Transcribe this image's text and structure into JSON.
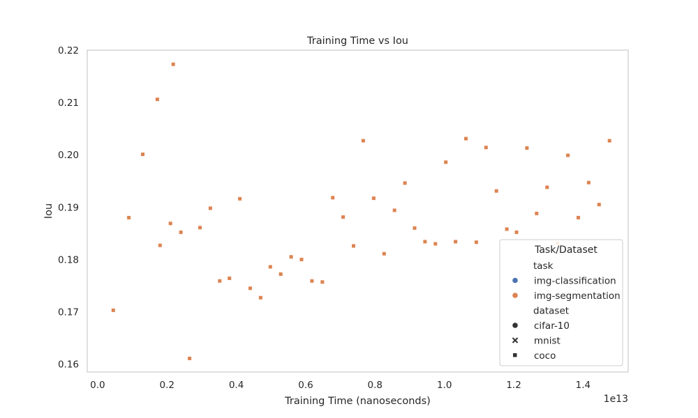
{
  "chart_data": {
    "type": "scatter",
    "title": "Training Time vs Iou",
    "xlabel": "Training Time (nanoseconds)",
    "ylabel": "Iou",
    "x_offset_label": "1e13",
    "x_scale_exponent": 13,
    "xlim": [
      -0.03,
      1.53
    ],
    "ylim": [
      0.1585,
      0.22
    ],
    "x_ticks": [
      0.0,
      0.2,
      0.4,
      0.6,
      0.8,
      1.0,
      1.2,
      1.4
    ],
    "x_tick_labels": [
      "0.0",
      "0.2",
      "0.4",
      "0.6",
      "0.8",
      "1.0",
      "1.2",
      "1.4"
    ],
    "y_ticks": [
      0.16,
      0.17,
      0.18,
      0.19,
      0.2,
      0.21,
      0.22
    ],
    "y_tick_labels": [
      "0.16",
      "0.17",
      "0.18",
      "0.19",
      "0.20",
      "0.21",
      "0.22"
    ],
    "grid": false,
    "legend": {
      "title": "Task/Dataset",
      "placement": "lower-right",
      "entries": [
        {
          "label": "task",
          "marker": "none",
          "color": ""
        },
        {
          "label": "img-classification",
          "marker": "circle",
          "color": "#4c72b0"
        },
        {
          "label": "img-segmentation",
          "marker": "circle",
          "color": "#dd8452"
        },
        {
          "label": "dataset",
          "marker": "none",
          "color": ""
        },
        {
          "label": "cifar-10",
          "marker": "circle",
          "color": "#333333"
        },
        {
          "label": "mnist",
          "marker": "x",
          "color": "#333333"
        },
        {
          "label": "coco",
          "marker": "square",
          "color": "#333333"
        }
      ]
    },
    "series": [
      {
        "task": "img-segmentation",
        "dataset": "coco",
        "color": "#dd8452",
        "marker": "square",
        "points": [
          [
            0.045,
            0.1703
          ],
          [
            0.09,
            0.188
          ],
          [
            0.13,
            0.2001
          ],
          [
            0.172,
            0.2106
          ],
          [
            0.18,
            0.1827
          ],
          [
            0.21,
            0.1869
          ],
          [
            0.218,
            0.2173
          ],
          [
            0.24,
            0.1852
          ],
          [
            0.265,
            0.1611
          ],
          [
            0.295,
            0.1861
          ],
          [
            0.325,
            0.1898
          ],
          [
            0.352,
            0.1759
          ],
          [
            0.38,
            0.1764
          ],
          [
            0.41,
            0.1916
          ],
          [
            0.44,
            0.1745
          ],
          [
            0.47,
            0.1727
          ],
          [
            0.498,
            0.1786
          ],
          [
            0.528,
            0.1772
          ],
          [
            0.558,
            0.1805
          ],
          [
            0.588,
            0.18
          ],
          [
            0.618,
            0.1759
          ],
          [
            0.648,
            0.1757
          ],
          [
            0.678,
            0.1918
          ],
          [
            0.708,
            0.1881
          ],
          [
            0.738,
            0.1826
          ],
          [
            0.766,
            0.2027
          ],
          [
            0.796,
            0.1917
          ],
          [
            0.826,
            0.1811
          ],
          [
            0.856,
            0.1894
          ],
          [
            0.886,
            0.1946
          ],
          [
            0.914,
            0.186
          ],
          [
            0.944,
            0.1834
          ],
          [
            0.974,
            0.183
          ],
          [
            1.004,
            0.1986
          ],
          [
            1.032,
            0.1834
          ],
          [
            1.062,
            0.2031
          ],
          [
            1.092,
            0.1833
          ],
          [
            1.12,
            0.2014
          ],
          [
            1.15,
            0.1931
          ],
          [
            1.18,
            0.1858
          ],
          [
            1.208,
            0.1852
          ],
          [
            1.238,
            0.2013
          ],
          [
            1.266,
            0.1888
          ],
          [
            1.296,
            0.1938
          ],
          [
            1.326,
            0.1831
          ],
          [
            1.356,
            0.1999
          ],
          [
            1.386,
            0.188
          ],
          [
            1.416,
            0.1947
          ],
          [
            1.446,
            0.1905
          ],
          [
            1.476,
            0.2027
          ]
        ]
      }
    ]
  }
}
